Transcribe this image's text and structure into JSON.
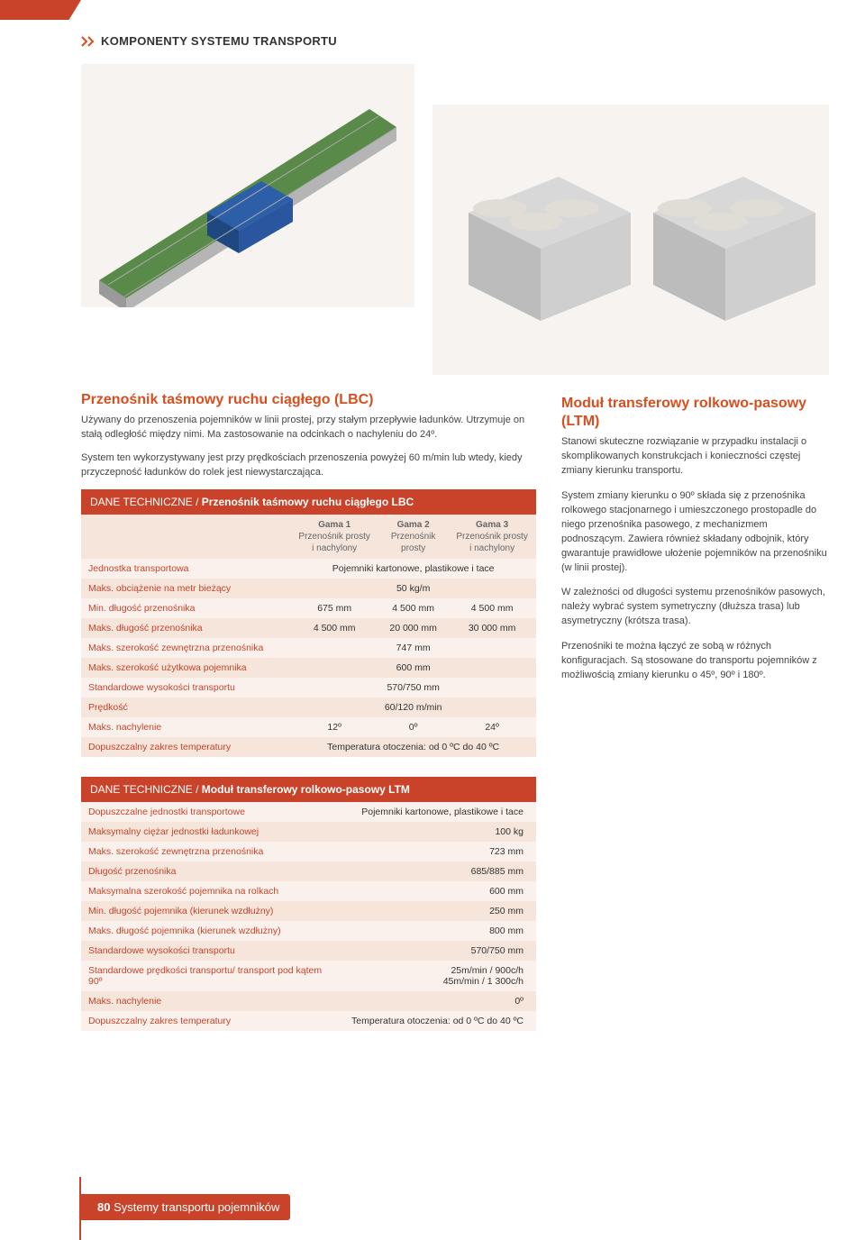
{
  "colors": {
    "accent": "#d94e1f",
    "table_header_bg": "#c8432a",
    "row_odd": "#fbf1ec",
    "row_even": "#f5e5db",
    "text": "#333333"
  },
  "header": {
    "section_label": "KOMPONENTY SYSTEMU TRANSPORTU"
  },
  "lbc": {
    "title": "Przenośnik taśmowy ruchu ciągłego (LBC)",
    "p1": "Używany do przenoszenia pojemników w linii prostej, przy stałym przepływie ładunków. Utrzymuje on stałą odległość między nimi. Ma zastosowanie na odcinkach o nachyleniu do 24º.",
    "p2": "System ten wykorzystywany jest przy prędkościach przenoszenia powyżej 60 m/min lub wtedy, kiedy przyczepność ładunków do rolek jest niewystarczająca."
  },
  "ltm": {
    "title": "Moduł transferowy rolkowo-pasowy (LTM)",
    "p1": "Stanowi skuteczne rozwiązanie w przypadku instalacji o skomplikowanych konstrukcjach i konieczności częstej zmiany kierunku transportu.",
    "p2": "System zmiany kierunku o 90º składa się z przenośnika rolkowego stacjonarnego i umieszczonego prostopadle do niego przenośnika pasowego, z mechanizmem podnoszącym. Zawiera również składany odbojnik, który gwarantuje prawidłowe ułożenie pojemników na przenośniku (w linii prostej).",
    "p3": "W zależności od długości systemu przenośników pasowych, należy wybrać system symetryczny (dłuższa trasa) lub asymetryczny (krótsza trasa).",
    "p4": "Przenośniki te można łączyć ze sobą w różnych konfiguracjach. Są stosowane do transportu pojemników z możliwością zmiany kierunku o 45º, 90º i 180º."
  },
  "table1": {
    "caption_prefix": "DANE TECHNICZNE / ",
    "caption_title": "Przenośnik taśmowy ruchu ciągłego LBC",
    "columns": [
      {
        "group": "Gama 1",
        "sub": "Przenośnik prosty i nachylony"
      },
      {
        "group": "Gama 2",
        "sub": "Przenośnik prosty"
      },
      {
        "group": "Gama 3",
        "sub": "Przenośnik prosty i nachylony"
      }
    ],
    "rows": [
      {
        "label": "Jednostka transportowa",
        "span": "Pojemniki kartonowe, plastikowe i tace"
      },
      {
        "label": "Maks. obciążenie na metr bieżący",
        "span": "50 kg/m"
      },
      {
        "label": "Min. długość przenośnika",
        "vals": [
          "675 mm",
          "4 500 mm",
          "4 500 mm"
        ]
      },
      {
        "label": "Maks. długość przenośnika",
        "vals": [
          "4 500 mm",
          "20 000 mm",
          "30 000 mm"
        ]
      },
      {
        "label": "Maks. szerokość zewnętrzna przenośnika",
        "span": "747 mm"
      },
      {
        "label": "Maks. szerokość użytkowa pojemnika",
        "span": "600 mm"
      },
      {
        "label": "Standardowe wysokości transportu",
        "span": "570/750 mm"
      },
      {
        "label": "Prędkość",
        "span": "60/120 m/min"
      },
      {
        "label": "Maks. nachylenie",
        "vals": [
          "12º",
          "0º",
          "24º"
        ]
      },
      {
        "label": "Dopuszczalny zakres temperatury",
        "span": "Temperatura otoczenia: od 0 ºC do 40 ºC"
      }
    ]
  },
  "table2": {
    "caption_prefix": "DANE TECHNICZNE / ",
    "caption_title": "Moduł transferowy rolkowo-pasowy LTM",
    "rows": [
      {
        "label": "Dopuszczalne jednostki transportowe",
        "val": "Pojemniki kartonowe, plastikowe i tace"
      },
      {
        "label": "Maksymalny ciężar jednostki ładunkowej",
        "val": "100 kg"
      },
      {
        "label": "Maks. szerokość zewnętrzna przenośnika",
        "val": "723 mm"
      },
      {
        "label": "Długość przenośnika",
        "val": "685/885 mm"
      },
      {
        "label": "Maksymalna szerokość pojemnika na rolkach",
        "val": "600 mm"
      },
      {
        "label": "Min. długość pojemnika (kierunek wzdłużny)",
        "val": "250 mm"
      },
      {
        "label": "Maks. długość pojemnika (kierunek wzdłużny)",
        "val": "800 mm"
      },
      {
        "label": "Standardowe wysokości transportu",
        "val": "570/750 mm"
      },
      {
        "label": "Standardowe prędkości transportu/ transport pod kątem 90º",
        "val": "25m/min / 900c/h\n45m/min / 1 300c/h"
      },
      {
        "label": "Maks. nachylenie",
        "val": "0º"
      },
      {
        "label": "Dopuszczalny zakres temperatury",
        "val": "Temperatura otoczenia: od 0 ºC do 40 ºC"
      }
    ]
  },
  "footer": {
    "page_number": "80",
    "title": "Systemy transportu pojemników"
  }
}
